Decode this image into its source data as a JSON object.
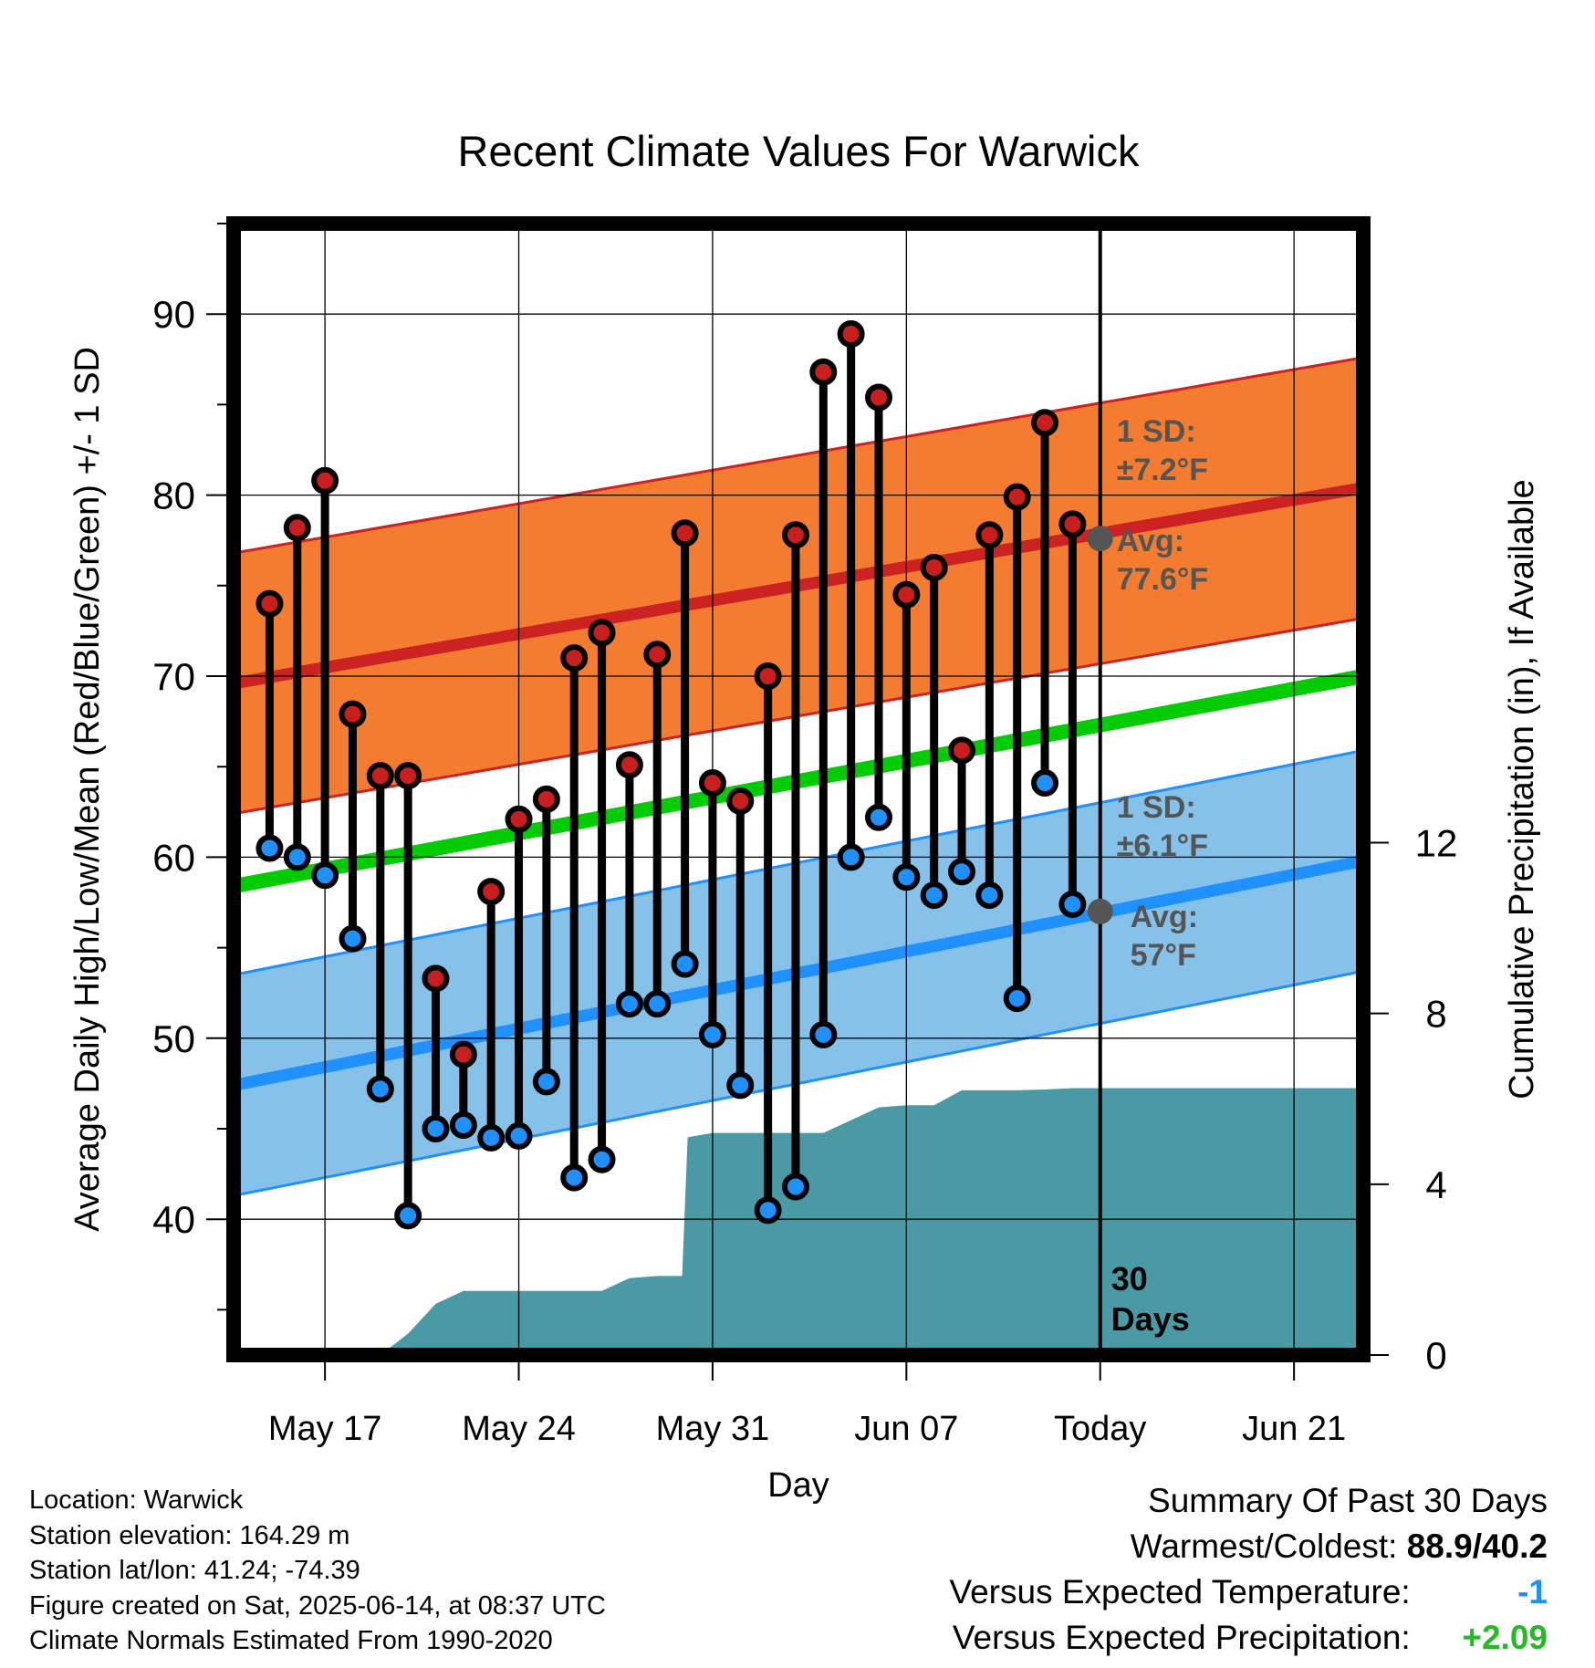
{
  "chart_data": {
    "type": "line",
    "title": "Recent Climate Values For Warwick",
    "xlabel": "Day",
    "ylabel": "Average Daily High/Low/Mean (Red/Blue/Green) +/- 1 SD",
    "y2label": "Cumulative Precipitation (in), If Available",
    "ylim": [
      32.5,
      95
    ],
    "y2lim": [
      0,
      26.5
    ],
    "yticks": [
      "40",
      "50",
      "60",
      "70",
      "80",
      "90"
    ],
    "y2ticks": [
      "0",
      "4",
      "8",
      "12"
    ],
    "xticks": [
      {
        "day": 4,
        "label": "May 17"
      },
      {
        "day": 11,
        "label": "May 24"
      },
      {
        "day": 18,
        "label": "May 31"
      },
      {
        "day": 25,
        "label": "Jun 07"
      },
      {
        "day": 32,
        "label": "Today"
      },
      {
        "day": 39,
        "label": "Jun 21"
      }
    ],
    "x_range_days": [
      0.7,
      41.5
    ],
    "days": [
      2,
      3,
      4,
      5,
      6,
      7,
      8,
      9,
      10,
      11,
      12,
      13,
      14,
      15,
      16,
      17,
      18,
      19,
      20,
      21,
      22,
      23,
      24,
      25,
      26,
      27,
      28,
      29,
      30,
      31
    ],
    "series": [
      {
        "name": "High",
        "color": "#c81e1e",
        "values": [
          74.0,
          78.2,
          80.8,
          67.9,
          64.5,
          64.5,
          53.3,
          49.1,
          58.1,
          62.1,
          63.2,
          71.0,
          72.4,
          65.1,
          71.2,
          77.9,
          64.1,
          63.1,
          70.0,
          77.8,
          86.8,
          88.9,
          85.4,
          74.5,
          76.0,
          65.9,
          77.8,
          79.9,
          84.0,
          78.4
        ]
      },
      {
        "name": "Low",
        "color": "#1e90ff",
        "values": [
          60.5,
          60.0,
          59.0,
          55.5,
          47.2,
          40.2,
          45.0,
          45.2,
          44.5,
          44.6,
          47.6,
          42.3,
          43.3,
          51.9,
          51.9,
          54.1,
          50.2,
          47.4,
          40.5,
          41.8,
          50.2,
          60.0,
          62.2,
          58.9,
          57.9,
          59.2,
          57.9,
          52.2,
          64.1,
          57.4
        ]
      }
    ],
    "normals": {
      "high": {
        "color": "#cc2222",
        "start": 69.6,
        "end": 80.4,
        "sd": 7.2
      },
      "low": {
        "color": "#1e90ff",
        "start": 47.4,
        "end": 59.8,
        "sd": 6.1
      },
      "mean": {
        "color": "#00cc00",
        "start": 58.4,
        "end": 70.0
      }
    },
    "precipitation": {
      "color": "#4a9aa5",
      "days": [
        6.0,
        7.0,
        8.0,
        9.0,
        10.0,
        11.0,
        12.0,
        13.0,
        14.0,
        15.0,
        16.0,
        16.9,
        17.1,
        18.0,
        19.0,
        20.0,
        21.0,
        22.0,
        23.0,
        24.0,
        25.0,
        26.0,
        27.0,
        28.0,
        29.0,
        30.0,
        31.0,
        32.0,
        41.5
      ],
      "values": [
        0.0,
        0.5,
        1.2,
        1.5,
        1.5,
        1.5,
        1.5,
        1.5,
        1.5,
        1.8,
        1.85,
        1.85,
        5.1,
        5.2,
        5.2,
        5.2,
        5.2,
        5.2,
        5.5,
        5.8,
        5.85,
        5.85,
        6.2,
        6.2,
        6.2,
        6.22,
        6.25,
        6.25,
        6.25
      ]
    },
    "today_day": 32,
    "annotations": {
      "high_sd_label": "1 SD:",
      "high_sd_value": "±7.2°F",
      "high_avg_label": "Avg:",
      "high_avg_value": "77.6°F",
      "low_sd_label": "1 SD:",
      "low_sd_value": "±6.1°F",
      "low_avg_label": "Avg:",
      "low_avg_value": "57°F",
      "today_avg_high": 77.6,
      "today_avg_low": 57,
      "window_label_1": "30",
      "window_label_2": "Days"
    },
    "grid": true,
    "legend": "none"
  },
  "footer": {
    "location": "Location: Warwick",
    "elevation": "Station elevation: 164.29 m",
    "latlon": "Station lat/lon: 41.24; -74.39",
    "created": "Figure created on Sat, 2025-06-14, at 08:37 UTC",
    "normals": "Climate Normals Estimated From 1990-2020"
  },
  "summary": {
    "title": "Summary Of Past 30 Days",
    "warm_cold_label": "Warmest/Coldest:",
    "warm_cold_value": "88.9/40.2",
    "temp_label": "Versus Expected Temperature:",
    "temp_value": "-1",
    "temp_color": "#1e90ff",
    "precip_label": "Versus Expected Precipitation:",
    "precip_value": "+2.09",
    "precip_color": "#22bb22"
  }
}
